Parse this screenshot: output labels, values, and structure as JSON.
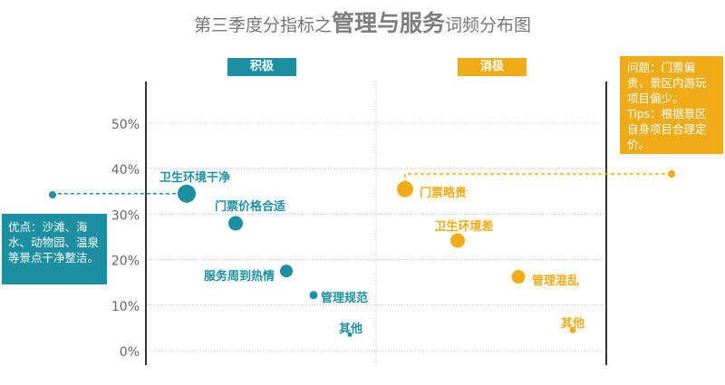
{
  "title": {
    "prefix": "第三季度分指标之",
    "emphasis": "管理与服务",
    "suffix": "词频分布图"
  },
  "panels": {
    "positive_label": "积极",
    "negative_label": "消极"
  },
  "callouts": {
    "left": "优点：沙滩、海水、动物园、温泉等景点干净整洁。",
    "right": "问题：门票偏贵，景区内游玩项目偏少。Tips：根据景区自身项目合理定价。"
  },
  "colors": {
    "positive": "#1d8fa2",
    "negative": "#f0ac16",
    "axis": "#333333",
    "grid": "#b9b9b9",
    "tick_text": "#666666",
    "title": "#777777"
  },
  "chart_data": {
    "type": "scatter",
    "title": "第三季度分指标之管理与服务词频分布图",
    "xlabel": "",
    "ylabel": "",
    "ylim": [
      0,
      55
    ],
    "yticks": [
      0,
      10,
      20,
      30,
      40,
      50
    ],
    "ytick_labels": [
      "0%",
      "10%",
      "20%",
      "30%",
      "40%",
      "50%"
    ],
    "grid": true,
    "series": [
      {
        "name": "积极",
        "color": "#1d8fa2",
        "points": [
          {
            "label": "卫生环境干净",
            "y": 34.5
          },
          {
            "label": "门票价格合适",
            "y": 28.0
          },
          {
            "label": "服务周到热情",
            "y": 17.5
          },
          {
            "label": "管理规范",
            "y": 12.2
          },
          {
            "label": "其他",
            "y": 3.5
          }
        ]
      },
      {
        "name": "消极",
        "color": "#f0ac16",
        "points": [
          {
            "label": "门票略贵",
            "y": 35.5
          },
          {
            "label": "卫生环境差",
            "y": 24.2
          },
          {
            "label": "管理混乱",
            "y": 16.2
          },
          {
            "label": "其他",
            "y": 4.5
          }
        ]
      }
    ]
  }
}
